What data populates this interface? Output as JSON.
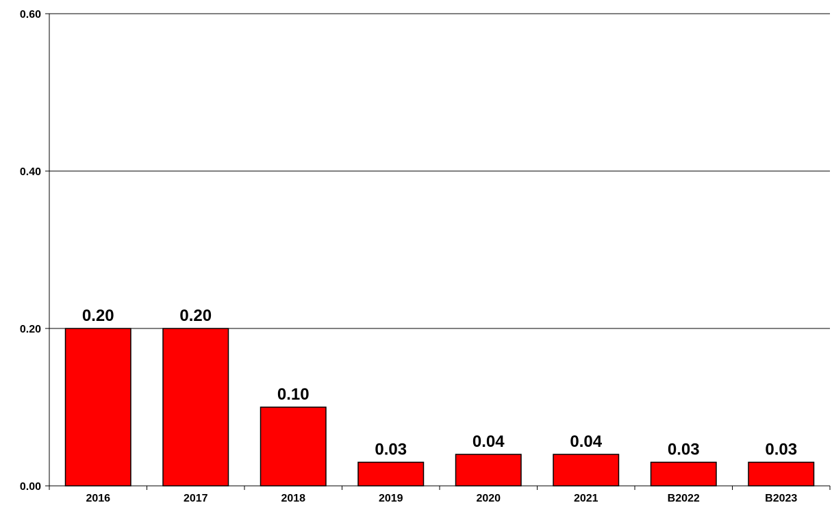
{
  "chart_data": {
    "type": "bar",
    "title": "",
    "xlabel": "",
    "ylabel": "",
    "categories": [
      "2016",
      "2017",
      "2018",
      "2019",
      "2020",
      "2021",
      "B2022",
      "B2023"
    ],
    "values": [
      0.2,
      0.2,
      0.1,
      0.03,
      0.04,
      0.04,
      0.03,
      0.03
    ],
    "data_labels": [
      "0.20",
      "0.20",
      "0.10",
      "0.03",
      "0.04",
      "0.04",
      "0.03",
      "0.03"
    ],
    "ylim": [
      0,
      0.6
    ],
    "yticks": [
      0.0,
      0.2,
      0.4,
      0.6
    ],
    "ytick_labels": [
      "0.00",
      "0.20",
      "0.40",
      "0.60"
    ],
    "grid": "horizontal",
    "legend": "none",
    "bar_color": "#ff0000",
    "bar_edge_color": "#000000"
  }
}
